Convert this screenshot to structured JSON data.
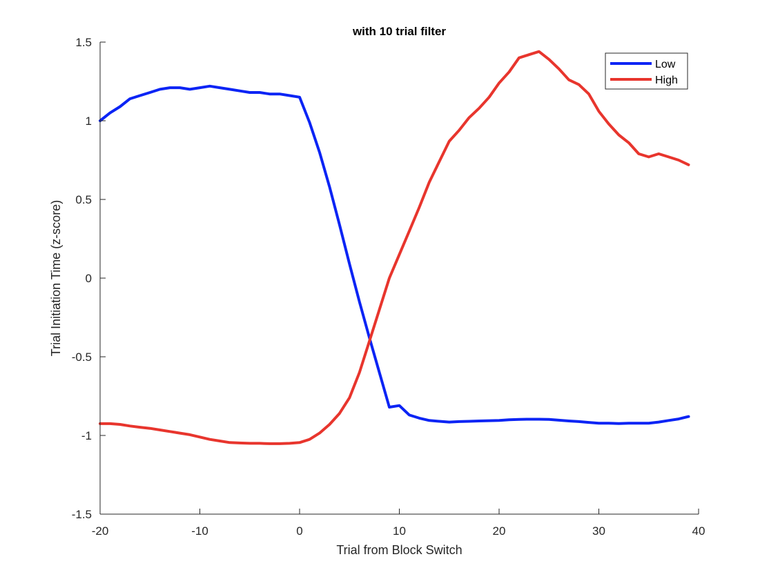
{
  "chart_data": {
    "type": "line",
    "title": "with 10 trial filter",
    "xlabel": "Trial from Block Switch",
    "ylabel": "Trial Initiation Time (z-score)",
    "xlim": [
      -20,
      40
    ],
    "ylim": [
      -1.5,
      1.5
    ],
    "xticks": [
      -20,
      -10,
      0,
      10,
      20,
      30,
      40
    ],
    "yticks": [
      -1.5,
      -1,
      -0.5,
      0,
      0.5,
      1,
      1.5
    ],
    "xtick_labels": [
      "-20",
      "-10",
      "0",
      "10",
      "20",
      "30",
      "40"
    ],
    "ytick_labels": [
      "-1.5",
      "-1",
      "-0.5",
      "0",
      "0.5",
      "1",
      "1.5"
    ],
    "grid": false,
    "legend_position": "top-right",
    "series": [
      {
        "name": "Low",
        "color": "#0b24f5",
        "x": [
          -20,
          -19,
          -18,
          -17,
          -16,
          -15,
          -14,
          -13,
          -12,
          -11,
          -10,
          -9,
          -8,
          -7,
          -6,
          -5,
          -4,
          -3,
          -2,
          -1,
          0,
          1,
          2,
          3,
          4,
          5,
          6,
          7,
          8,
          9,
          10,
          11,
          12,
          13,
          14,
          15,
          16,
          17,
          18,
          19,
          20,
          21,
          22,
          23,
          24,
          25,
          26,
          27,
          28,
          29,
          30,
          31,
          32,
          33,
          34,
          35,
          36,
          37,
          38,
          39
        ],
        "y": [
          1.0,
          1.05,
          1.09,
          1.14,
          1.16,
          1.18,
          1.2,
          1.21,
          1.21,
          1.2,
          1.21,
          1.22,
          1.21,
          1.2,
          1.19,
          1.18,
          1.18,
          1.17,
          1.17,
          1.16,
          1.15,
          0.99,
          0.8,
          0.58,
          0.34,
          0.09,
          -0.15,
          -0.38,
          -0.6,
          -0.82,
          -0.81,
          -0.87,
          -0.89,
          -0.905,
          -0.91,
          -0.915,
          -0.912,
          -0.91,
          -0.908,
          -0.906,
          -0.905,
          -0.9,
          -0.898,
          -0.897,
          -0.897,
          -0.898,
          -0.903,
          -0.908,
          -0.912,
          -0.917,
          -0.922,
          -0.922,
          -0.924,
          -0.922,
          -0.922,
          -0.922,
          -0.915,
          -0.905,
          -0.895,
          -0.88
        ]
      },
      {
        "name": "High",
        "color": "#e8352d",
        "x": [
          -20,
          -19,
          -18,
          -17,
          -16,
          -15,
          -14,
          -13,
          -12,
          -11,
          -10,
          -9,
          -8,
          -7,
          -6,
          -5,
          -4,
          -3,
          -2,
          -1,
          0,
          1,
          2,
          3,
          4,
          5,
          6,
          7,
          8,
          9,
          10,
          11,
          12,
          13,
          14,
          15,
          16,
          17,
          18,
          19,
          20,
          21,
          22,
          23,
          24,
          25,
          26,
          27,
          28,
          29,
          30,
          31,
          32,
          33,
          34,
          35,
          36,
          37,
          38,
          39
        ],
        "y": [
          -0.925,
          -0.925,
          -0.93,
          -0.94,
          -0.948,
          -0.955,
          -0.965,
          -0.975,
          -0.985,
          -0.995,
          -1.01,
          -1.025,
          -1.035,
          -1.045,
          -1.048,
          -1.05,
          -1.05,
          -1.052,
          -1.052,
          -1.05,
          -1.045,
          -1.025,
          -0.985,
          -0.93,
          -0.86,
          -0.76,
          -0.6,
          -0.4,
          -0.2,
          0.0,
          0.15,
          0.3,
          0.45,
          0.61,
          0.74,
          0.87,
          0.94,
          1.02,
          1.08,
          1.15,
          1.24,
          1.31,
          1.4,
          1.42,
          1.44,
          1.39,
          1.33,
          1.26,
          1.23,
          1.17,
          1.06,
          0.98,
          0.91,
          0.86,
          0.79,
          0.77,
          0.79,
          0.77,
          0.75,
          0.72
        ]
      }
    ]
  }
}
